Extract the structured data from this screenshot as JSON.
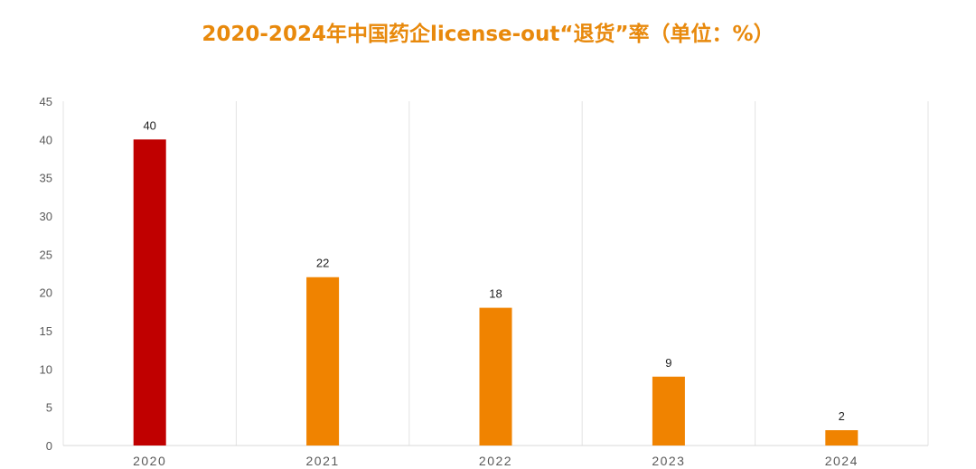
{
  "chart_data": {
    "type": "bar",
    "title": "2020-2024年中国药企license-out“退货”率（单位：%）",
    "categories": [
      "2020",
      "2021",
      "2022",
      "2023",
      "2024"
    ],
    "values": [
      40,
      22,
      18,
      9,
      2
    ],
    "data_labels": [
      "40",
      "22",
      "18",
      "9",
      "2"
    ],
    "ylim": [
      0,
      45
    ],
    "yticks": [
      "0",
      "5",
      "10",
      "15",
      "20",
      "25",
      "30",
      "35",
      "40",
      "45"
    ],
    "xlabel": "",
    "ylabel": "",
    "grid": "vertical category separators",
    "colors": [
      "#C00000",
      "#F08300",
      "#F08300",
      "#F08300",
      "#F08300"
    ]
  }
}
